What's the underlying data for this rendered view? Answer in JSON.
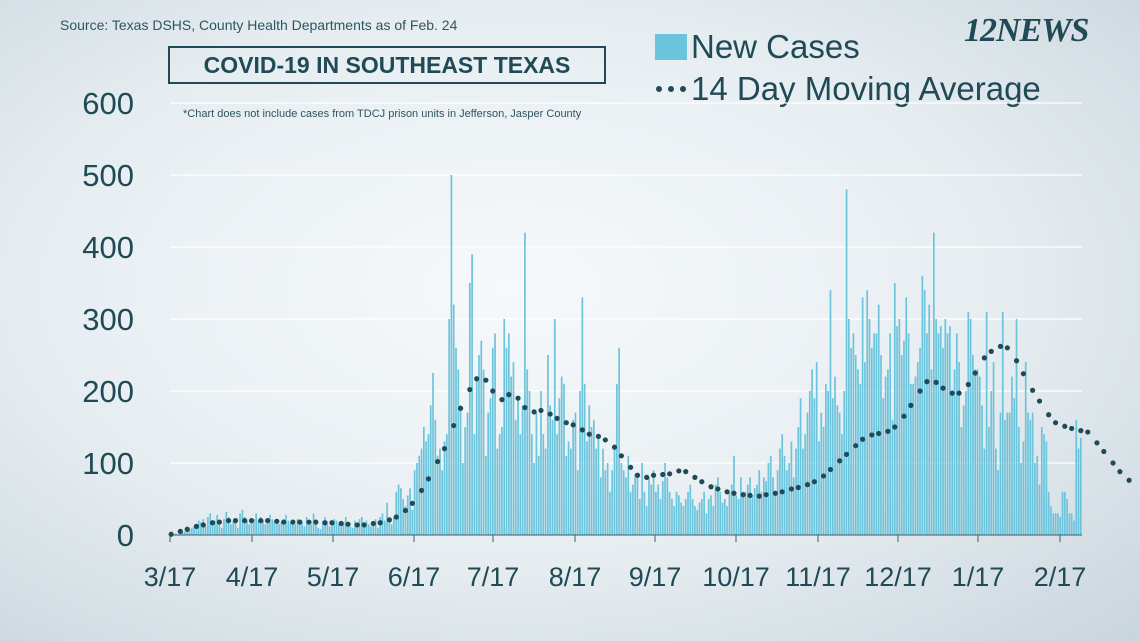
{
  "source": "Source: Texas DSHS, County Health Departments as of Feb. 24",
  "title": "COVID-19 IN SOUTHEAST TEXAS",
  "note": "*Chart does not include cases from TDCJ prison units in Jefferson, Jasper County",
  "logo": "12NEWS",
  "colors": {
    "bars": "#6cc4dc",
    "dots": "#1f4a56",
    "text": "#1f4a56"
  },
  "chart_data": {
    "type": "bar",
    "xlabel": "",
    "ylabel": "",
    "ylim": [
      0,
      600
    ],
    "yticks": [
      0,
      100,
      200,
      300,
      400,
      500,
      600
    ],
    "grid": true,
    "legend_position": "top-right",
    "x_start_date": "3/17",
    "xtick_labels": [
      "3/17",
      "4/17",
      "5/17",
      "6/17",
      "7/17",
      "8/17",
      "9/17",
      "10/17",
      "11/17",
      "12/17",
      "1/17",
      "2/17"
    ],
    "series": [
      {
        "name": "New Cases",
        "type": "bar",
        "values": [
          1,
          0,
          2,
          1,
          3,
          4,
          5,
          6,
          8,
          10,
          12,
          15,
          20,
          18,
          22,
          12,
          25,
          30,
          15,
          20,
          28,
          18,
          10,
          22,
          32,
          25,
          15,
          18,
          20,
          10,
          30,
          35,
          25,
          20,
          15,
          18,
          22,
          30,
          20,
          25,
          20,
          15,
          18,
          28,
          22,
          20,
          15,
          15,
          18,
          22,
          28,
          20,
          18,
          15,
          15,
          22,
          20,
          18,
          12,
          25,
          20,
          15,
          30,
          15,
          10,
          8,
          20,
          25,
          15,
          12,
          18,
          22,
          20,
          15,
          12,
          18,
          25,
          15,
          12,
          10,
          20,
          15,
          22,
          25,
          18,
          20,
          15,
          12,
          18,
          22,
          10,
          25,
          30,
          20,
          45,
          20,
          15,
          25,
          60,
          70,
          65,
          50,
          40,
          55,
          65,
          35,
          90,
          100,
          110,
          120,
          150,
          130,
          140,
          180,
          225,
          160,
          110,
          120,
          90,
          130,
          140,
          300,
          500,
          320,
          260,
          230,
          180,
          100,
          150,
          170,
          350,
          390,
          140,
          220,
          250,
          270,
          230,
          110,
          170,
          190,
          260,
          280,
          120,
          140,
          150,
          300,
          260,
          280,
          220,
          240,
          160,
          190,
          140,
          180,
          420,
          230,
          200,
          140,
          100,
          170,
          110,
          200,
          140,
          120,
          250,
          180,
          160,
          300,
          140,
          190,
          220,
          210,
          110,
          130,
          120,
          160,
          170,
          90,
          200,
          330,
          210,
          130,
          180,
          150,
          160,
          120,
          140,
          80,
          120,
          90,
          100,
          60,
          90,
          120,
          210,
          260,
          100,
          90,
          80,
          110,
          60,
          70,
          85,
          80,
          50,
          100,
          60,
          40,
          80,
          70,
          90,
          60,
          70,
          50,
          75,
          100,
          80,
          60,
          50,
          40,
          60,
          55,
          45,
          40,
          50,
          60,
          70,
          50,
          40,
          35,
          45,
          50,
          60,
          30,
          50,
          55,
          40,
          70,
          80,
          60,
          45,
          50,
          40,
          60,
          70,
          110,
          55,
          50,
          80,
          60,
          60,
          70,
          80,
          55,
          65,
          70,
          90,
          60,
          80,
          75,
          100,
          110,
          80,
          60,
          90,
          120,
          140,
          110,
          90,
          100,
          130,
          80,
          120,
          150,
          190,
          120,
          140,
          170,
          200,
          230,
          190,
          240,
          130,
          170,
          150,
          210,
          200,
          340,
          190,
          220,
          180,
          170,
          140,
          200,
          480,
          300,
          260,
          280,
          250,
          230,
          210,
          330,
          240,
          340,
          300,
          260,
          280,
          280,
          320,
          250,
          190,
          220,
          230,
          280,
          160,
          350,
          290,
          300,
          250,
          270,
          330,
          280,
          210,
          210,
          220,
          240,
          260,
          360,
          340,
          280,
          320,
          230,
          420,
          300,
          280,
          290,
          260,
          300,
          280,
          290,
          200,
          230,
          280,
          240,
          150,
          180,
          200,
          310,
          300,
          250,
          230,
          230,
          220,
          180,
          120,
          310,
          150,
          200,
          240,
          120,
          90,
          170,
          310,
          160,
          170,
          170,
          220,
          190,
          300,
          150,
          100,
          130,
          240,
          170,
          160,
          170,
          100,
          110,
          70,
          150,
          140,
          130,
          60,
          40,
          30,
          30,
          30,
          25,
          60,
          60,
          50,
          30,
          30,
          20,
          160,
          120,
          135
        ]
      },
      {
        "name": "14 Day Moving Average",
        "type": "dotted-line",
        "values": [
          1,
          2,
          3,
          4,
          5,
          6,
          7,
          8,
          9,
          10,
          11,
          12,
          13,
          14,
          14,
          15,
          16,
          16,
          17,
          17,
          18,
          18,
          19,
          19,
          20,
          20,
          20,
          20,
          20,
          20,
          20,
          20,
          20,
          20,
          20,
          20,
          20,
          20,
          20,
          20,
          20,
          20,
          20,
          20,
          20,
          19,
          19,
          19,
          18,
          18,
          18,
          18,
          18,
          18,
          18,
          18,
          18,
          18,
          18,
          18,
          18,
          18,
          18,
          18,
          18,
          17,
          17,
          17,
          17,
          17,
          17,
          17,
          17,
          16,
          16,
          16,
          16,
          15,
          15,
          15,
          14,
          14,
          14,
          14,
          14,
          15,
          15,
          15,
          16,
          16,
          17,
          17,
          18,
          19,
          20,
          21,
          22,
          23,
          25,
          27,
          29,
          31,
          34,
          37,
          40,
          44,
          48,
          52,
          57,
          62,
          67,
          72,
          78,
          84,
          90,
          96,
          102,
          108,
          114,
          120,
          128,
          136,
          144,
          152,
          160,
          168,
          176,
          184,
          190,
          196,
          202,
          208,
          213,
          217,
          219,
          220,
          218,
          215,
          210,
          205,
          200,
          195,
          190,
          188,
          188,
          190,
          192,
          195,
          197,
          196,
          193,
          190,
          186,
          182,
          177,
          173,
          171,
          170,
          171,
          172,
          173,
          173,
          173,
          172,
          170,
          168,
          166,
          164,
          162,
          160,
          158,
          157,
          156,
          155,
          154,
          153,
          152,
          150,
          148,
          146,
          144,
          142,
          140,
          138,
          137,
          137,
          137,
          136,
          134,
          132,
          130,
          128,
          126,
          122,
          118,
          114,
          110,
          106,
          102,
          98,
          94,
          90,
          86,
          83,
          80,
          79,
          79,
          80,
          81,
          82,
          83,
          84,
          84,
          84,
          84,
          84,
          84,
          85,
          86,
          87,
          88,
          89,
          90,
          89,
          88,
          86,
          84,
          82,
          80,
          78,
          76,
          74,
          72,
          70,
          68,
          67,
          66,
          65,
          64,
          63,
          62,
          61,
          60,
          60,
          59,
          58,
          58,
          57,
          56,
          56,
          55,
          55,
          55,
          55,
          55,
          54,
          54,
          55,
          55,
          56,
          56,
          57,
          57,
          58,
          58,
          59,
          60,
          61,
          62,
          63,
          64,
          65,
          66,
          66,
          67,
          68,
          69,
          70,
          71,
          72,
          74,
          76,
          78,
          80,
          82,
          85,
          88,
          91,
          94,
          97,
          100,
          103,
          106,
          109,
          112,
          115,
          118,
          121,
          124,
          127,
          130,
          133,
          135,
          137,
          138,
          139,
          140,
          140,
          141,
          141,
          142,
          143,
          144,
          146,
          148,
          150,
          153,
          156,
          160,
          165,
          170,
          175,
          180,
          185,
          190,
          195,
          200,
          205,
          210,
          213,
          215,
          215,
          214,
          212,
          210,
          207,
          204,
          201,
          199,
          198,
          197,
          196,
          196,
          197,
          199,
          202,
          205,
          209,
          214,
          219,
          225,
          231,
          237,
          242,
          246,
          249,
          252,
          255,
          257,
          259,
          261,
          262,
          263,
          262,
          260,
          257,
          253,
          248,
          242,
          236,
          230,
          224,
          218,
          212,
          206,
          201,
          196,
          191,
          186,
          181,
          176,
          171,
          167,
          163,
          159,
          156,
          154,
          153,
          152,
          151,
          150,
          149,
          148,
          147,
          146,
          145,
          145,
          145,
          144,
          143,
          140,
          136,
          132,
          128,
          124,
          120,
          116,
          112,
          108,
          104,
          100,
          96,
          92,
          88,
          85,
          82,
          79,
          76,
          74
        ]
      }
    ]
  }
}
